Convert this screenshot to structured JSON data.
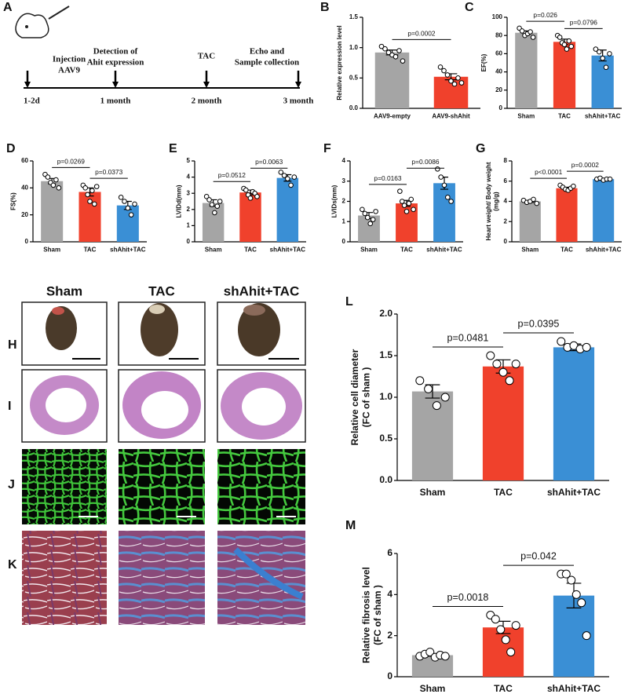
{
  "timeline": {
    "panel": "A",
    "times": [
      "1-2d",
      "1 month",
      "2 month",
      "3 month"
    ],
    "events": [
      [
        "Injection",
        "AAV9"
      ],
      [
        "Detection of",
        "Ahit expression"
      ],
      [
        "TAC"
      ],
      [
        "Echo and",
        "Sample collection"
      ]
    ]
  },
  "histology": {
    "columns": [
      "Sham",
      "TAC",
      "shAhit+TAC"
    ],
    "rows": [
      "H",
      "I",
      "J",
      "K"
    ]
  },
  "chart_data": [
    {
      "type": "bar",
      "panel": "B",
      "ylabel": [
        "Relative expression level"
      ],
      "categories": [
        "AAV9-empty",
        "AAV9-shAhit"
      ],
      "colors": [
        "#a5a5a5",
        "#f0412c"
      ],
      "values": [
        0.92,
        0.52
      ],
      "errors": [
        0.04,
        0.05
      ],
      "points": [
        [
          1.02,
          0.98,
          0.92,
          0.88,
          0.85,
          0.95,
          0.78
        ],
        [
          0.68,
          0.62,
          0.55,
          0.45,
          0.4,
          0.5,
          0.42
        ]
      ],
      "annotations": [
        "p=0.0002"
      ],
      "ylim": [
        0,
        1.5
      ],
      "yticks": [
        {
          "value": 0,
          "label": "0.0"
        },
        {
          "value": 0.5,
          "label": "0.5"
        },
        {
          "value": 1,
          "label": "1.0"
        },
        {
          "value": 1.5,
          "label": "1.5"
        }
      ]
    },
    {
      "type": "bar",
      "panel": "C",
      "ylabel": [
        "EF(%)"
      ],
      "categories": [
        "Sham",
        "TAC",
        "shAhit+TAC"
      ],
      "colors": [
        "#a5a5a5",
        "#f0412c",
        "#3a8fd5"
      ],
      "values": [
        83,
        73,
        58
      ],
      "errors": [
        2,
        3,
        6
      ],
      "points": [
        [
          88,
          85,
          80,
          82,
          84,
          78
        ],
        [
          80,
          78,
          72,
          70,
          65,
          74,
          68
        ],
        [
          65,
          62,
          55,
          45,
          60
        ]
      ],
      "annotations": [
        "p=0.026",
        "p=0.0796"
      ],
      "ylim": [
        0,
        100
      ],
      "yticks": [
        0,
        20,
        40,
        60,
        80,
        100
      ]
    },
    {
      "type": "bar",
      "panel": "D",
      "ylabel": [
        "FS(%)"
      ],
      "categories": [
        "Sham",
        "TAC",
        "shAhit+TAC"
      ],
      "colors": [
        "#a5a5a5",
        "#f0412c",
        "#3a8fd5"
      ],
      "values": [
        45,
        37,
        27
      ],
      "errors": [
        2,
        3,
        3
      ],
      "points": [
        [
          50,
          48,
          44,
          42,
          46,
          40
        ],
        [
          42,
          40,
          35,
          30,
          38,
          28,
          41
        ],
        [
          33,
          30,
          25,
          20,
          28
        ]
      ],
      "annotations": [
        "p=0.0269",
        "p=0.0373"
      ],
      "ylim": [
        0,
        60
      ],
      "yticks": [
        0,
        20,
        40,
        60
      ]
    },
    {
      "type": "bar",
      "panel": "E",
      "ylabel": [
        "LVIDd(mm)"
      ],
      "categories": [
        "Sham",
        "TAC",
        "shAhit+TAC"
      ],
      "colors": [
        "#a5a5a5",
        "#f0412c",
        "#3a8fd5"
      ],
      "values": [
        2.4,
        3.05,
        3.95
      ],
      "errors": [
        0.2,
        0.15,
        0.2
      ],
      "points": [
        [
          2.8,
          2.6,
          2.3,
          1.8,
          2.2,
          2.5
        ],
        [
          3.3,
          3.2,
          2.9,
          2.7,
          3.1,
          3.0,
          2.8
        ],
        [
          4.3,
          4.1,
          3.9,
          3.5,
          4.0
        ]
      ],
      "annotations": [
        "p=0.0512",
        "p=0.0063"
      ],
      "ylim": [
        0,
        5
      ],
      "yticks": [
        0,
        1,
        2,
        3,
        4,
        5
      ]
    },
    {
      "type": "bar",
      "panel": "F",
      "ylabel": [
        "LVIDs(mm)"
      ],
      "categories": [
        "Sham",
        "TAC",
        "shAhit+TAC"
      ],
      "colors": [
        "#a5a5a5",
        "#f0412c",
        "#3a8fd5"
      ],
      "values": [
        1.3,
        1.9,
        2.9
      ],
      "errors": [
        0.15,
        0.15,
        0.3
      ],
      "points": [
        [
          1.6,
          1.4,
          1.2,
          0.9,
          1.1,
          1.5
        ],
        [
          2.5,
          2.0,
          1.8,
          1.5,
          1.9,
          2.1,
          1.6
        ],
        [
          3.6,
          3.2,
          2.8,
          2.2,
          2.0
        ]
      ],
      "annotations": [
        "p=0.0163",
        "p=0.0086"
      ],
      "ylim": [
        0,
        4
      ],
      "yticks": [
        0,
        1,
        2,
        3,
        4
      ]
    },
    {
      "type": "bar",
      "panel": "G",
      "ylabel": [
        "Heart weight/ Body weight",
        "(mg/g)"
      ],
      "categories": [
        "Sham",
        "TAC",
        "shAhit+TAC"
      ],
      "colors": [
        "#a5a5a5",
        "#f0412c",
        "#3a8fd5"
      ],
      "values": [
        4.0,
        5.3,
        6.2
      ],
      "errors": [
        0.1,
        0.1,
        0.05
      ],
      "points": [
        [
          4.1,
          3.9,
          4.0,
          4.2,
          3.8
        ],
        [
          5.6,
          5.4,
          5.2,
          5.1,
          5.3,
          5.5
        ],
        [
          6.2,
          6.3,
          6.1,
          6.2,
          6.2
        ]
      ],
      "annotations": [
        "p<0.0001",
        "p=0.0002"
      ],
      "ylim": [
        0,
        8
      ],
      "yticks": [
        0,
        2,
        4,
        6,
        8
      ]
    },
    {
      "type": "bar",
      "panel": "L",
      "ylabel": [
        "Relative cell diameter",
        "(FC of sham )"
      ],
      "categories": [
        "Sham",
        "TAC",
        "shAhit+TAC"
      ],
      "colors": [
        "#a5a5a5",
        "#f0412c",
        "#3a8fd5"
      ],
      "values": [
        1.07,
        1.37,
        1.6
      ],
      "errors": [
        0.08,
        0.08,
        0.04
      ],
      "points": [
        [
          1.2,
          1.1,
          0.9,
          1.0
        ],
        [
          1.5,
          1.4,
          1.3,
          1.2,
          1.4
        ],
        [
          1.67,
          1.6,
          1.62,
          1.58,
          1.6
        ]
      ],
      "annotations": [
        "p=0.0481",
        "p=0.0395"
      ],
      "ylim": [
        0,
        2
      ],
      "yticks": [
        {
          "value": 0,
          "label": "0.0"
        },
        {
          "value": 0.5,
          "label": "0.5"
        },
        {
          "value": 1,
          "label": "1.0"
        },
        {
          "value": 1.5,
          "label": "1.5"
        },
        {
          "value": 2,
          "label": "2.0"
        }
      ]
    },
    {
      "type": "bar",
      "panel": "M",
      "ylabel": [
        "Relative fibrosis level",
        "(FC of sham )"
      ],
      "categories": [
        "Sham",
        "TAC",
        "shAhit+TAC"
      ],
      "colors": [
        "#a5a5a5",
        "#f0412c",
        "#3a8fd5"
      ],
      "values": [
        1.05,
        2.4,
        3.95
      ],
      "errors": [
        0.05,
        0.3,
        0.6
      ],
      "points": [
        [
          1.0,
          1.1,
          1.2,
          0.95,
          1.05,
          1.0
        ],
        [
          3.0,
          2.8,
          2.3,
          1.8,
          1.2,
          2.5
        ],
        [
          5.0,
          5.0,
          4.7,
          4.0,
          3.6,
          2.0
        ]
      ],
      "annotations": [
        "p=0.0018",
        "p=0.042"
      ],
      "ylim": [
        0,
        6
      ],
      "yticks": [
        0,
        2,
        4,
        6
      ]
    }
  ]
}
